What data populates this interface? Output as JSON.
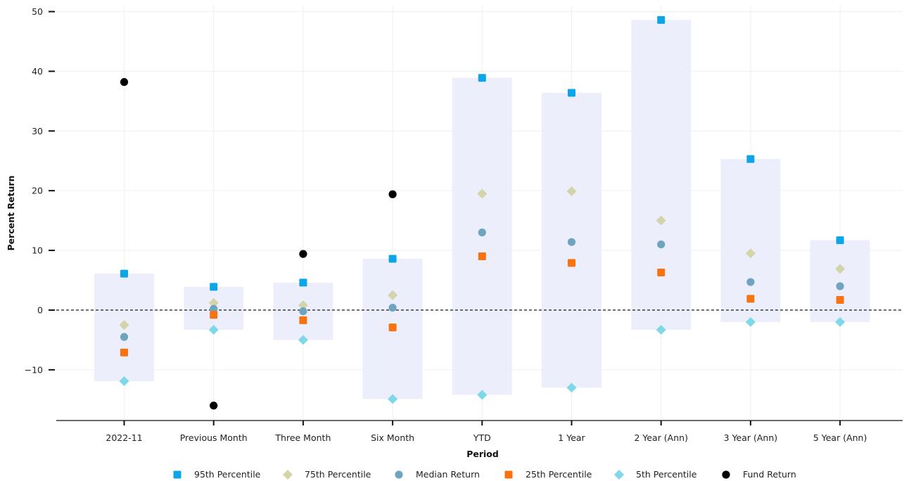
{
  "chart_data": {
    "type": "scatter",
    "xlabel": "Period",
    "ylabel": "Percent Return",
    "categories": [
      "2022-11",
      "Previous Month",
      "Three Month",
      "Six Month",
      "YTD",
      "1 Year",
      "2 Year (Ann)",
      "3 Year (Ann)",
      "5 Year (Ann)"
    ],
    "ylim": [
      -18.5,
      51
    ],
    "yticks": [
      -10,
      0,
      10,
      20,
      30,
      40,
      50
    ],
    "ytick_labels": [
      "−10",
      "0",
      "10",
      "20",
      "30",
      "40",
      "50"
    ],
    "grid": true,
    "zero_line": 0,
    "legend_position": "bottom",
    "range_band": {
      "from_series": "5th Percentile",
      "to_series": "95th Percentile",
      "color": "#eceefc"
    },
    "series": [
      {
        "name": "95th Percentile",
        "marker": "square",
        "color": "#0ca6e8",
        "values": [
          6.1,
          3.9,
          4.6,
          8.6,
          38.9,
          36.4,
          48.6,
          25.3,
          11.7
        ]
      },
      {
        "name": "75th Percentile",
        "marker": "diamond",
        "color": "#d4d4a8",
        "values": [
          -2.5,
          1.2,
          0.8,
          2.5,
          19.5,
          19.9,
          15.0,
          9.5,
          6.9
        ]
      },
      {
        "name": "Median Return",
        "marker": "circle",
        "color": "#6fa4c0",
        "values": [
          -4.5,
          0.2,
          -0.2,
          0.4,
          13.0,
          11.4,
          11.0,
          4.7,
          4.0
        ]
      },
      {
        "name": "25th Percentile",
        "marker": "square",
        "color": "#f7730f",
        "values": [
          -7.1,
          -0.8,
          -1.7,
          -2.9,
          9.0,
          7.9,
          6.3,
          1.9,
          1.7
        ]
      },
      {
        "name": "5th Percentile",
        "marker": "diamond",
        "color": "#7fd8e8",
        "values": [
          -11.9,
          -3.3,
          -5.0,
          -14.9,
          -14.2,
          -13.0,
          -3.3,
          -2.0,
          -2.0
        ]
      },
      {
        "name": "Fund Return",
        "marker": "circle",
        "color": "#000000",
        "values": [
          38.2,
          -16.0,
          9.4,
          19.4,
          null,
          null,
          null,
          null,
          null
        ]
      }
    ]
  }
}
